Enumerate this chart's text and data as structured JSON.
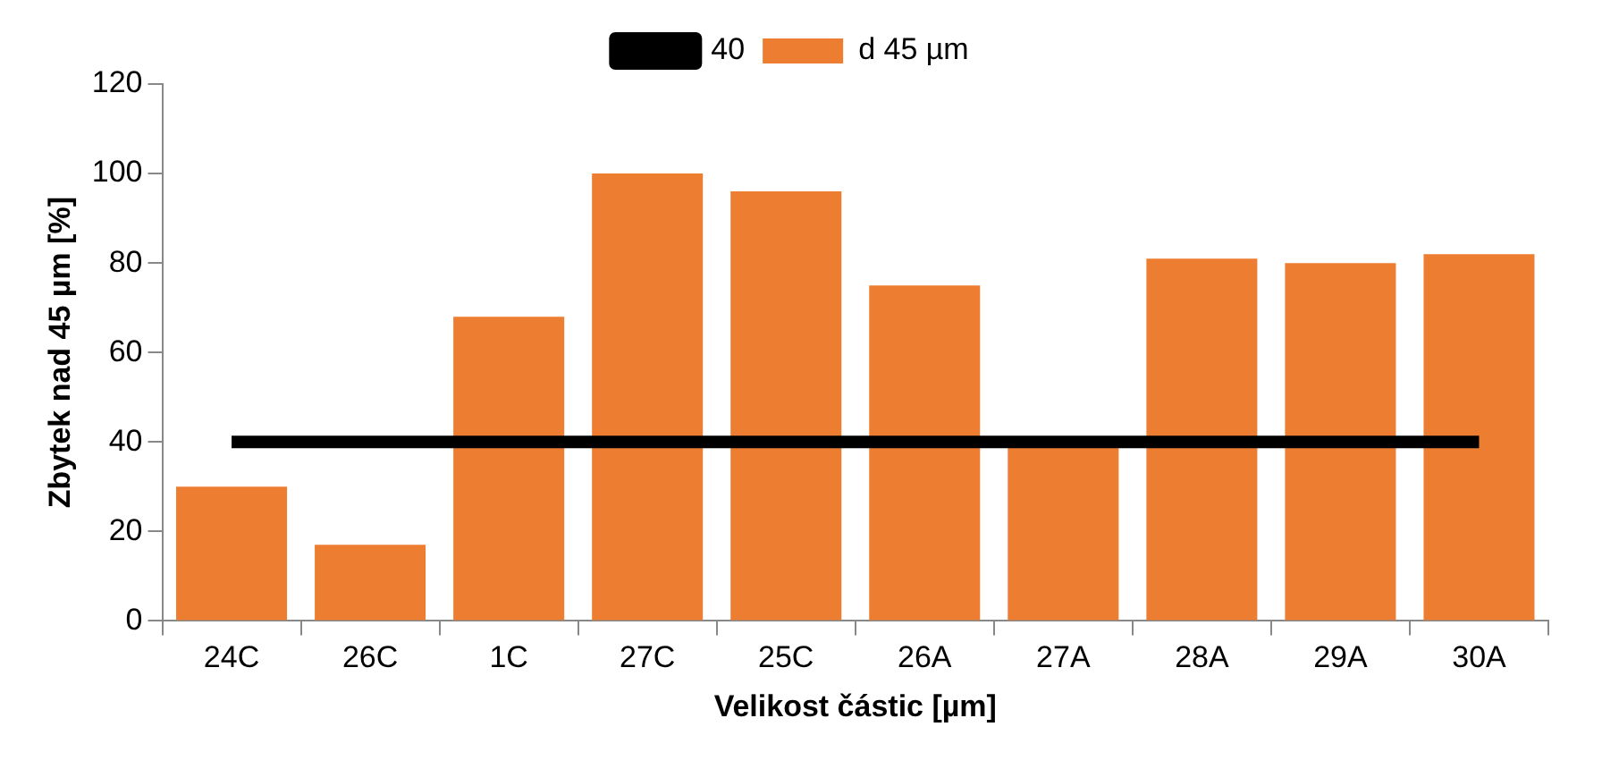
{
  "chart_data": {
    "type": "bar",
    "xlabel": "Velikost částic [µm]",
    "ylabel": "Zbytek nad 45 µm [%]",
    "categories": [
      "24C",
      "26C",
      "1C",
      "27C",
      "25C",
      "26A",
      "27A",
      "28A",
      "29A",
      "30A"
    ],
    "series": [
      {
        "name": "d 45 µm",
        "color": "#ed7d31",
        "values": [
          30,
          17,
          68,
          100,
          96,
          75,
          39,
          81,
          80,
          82
        ]
      },
      {
        "name": "40",
        "type": "line",
        "color": "#000000",
        "values": [
          40,
          40,
          40,
          40,
          40,
          40,
          40,
          40,
          40,
          40
        ]
      }
    ],
    "ylim": [
      0,
      120
    ],
    "yticks": [
      0,
      20,
      40,
      60,
      80,
      100,
      120
    ],
    "grid": false,
    "legend": "top",
    "marker": "none"
  }
}
